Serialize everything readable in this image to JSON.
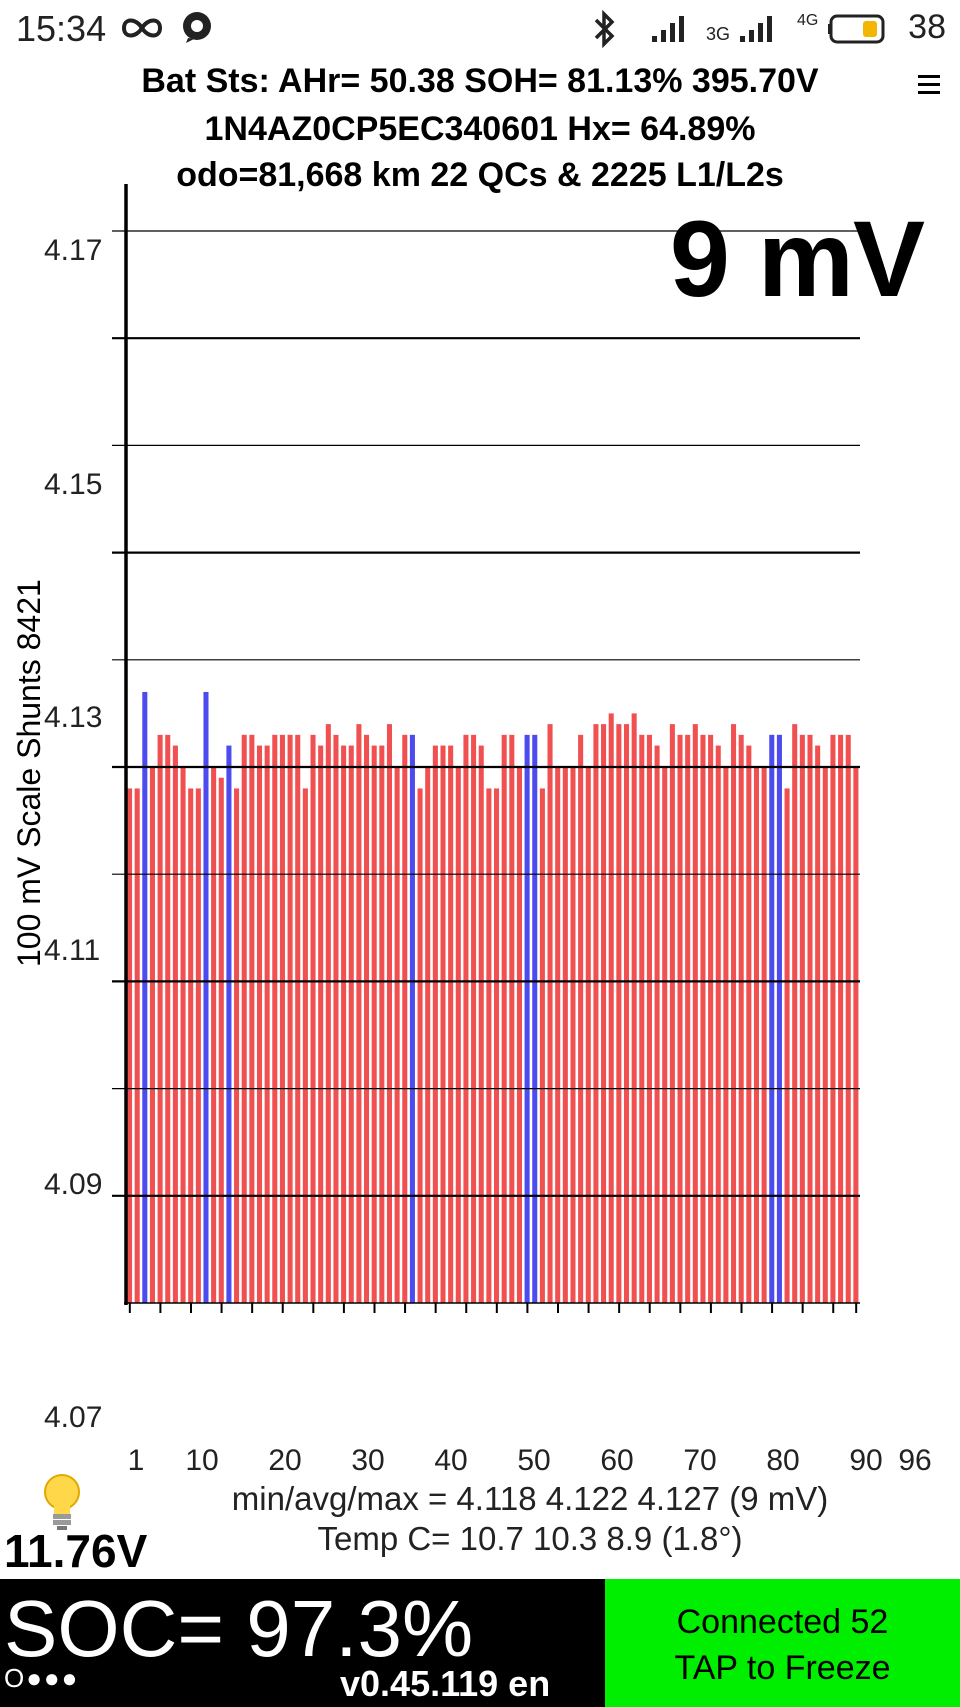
{
  "status_bar": {
    "time": "15:34",
    "battery_level": "38",
    "network_3g": "3G",
    "network_4g": "4G"
  },
  "header": {
    "line1": "Bat Sts: AHr= 50.38 SOH= 81.13% 395.70V",
    "line2": "1N4AZ0CP5EC340601   Hx= 64.89%",
    "line3": "odo=81,668 km 22 QCs & 2225 L1/L2s"
  },
  "chart_data": {
    "type": "bar",
    "big_label": "9 mV",
    "ylabel": "100 mV Scale   Shunts 8421",
    "ylim": [
      4.07,
      4.17
    ],
    "y_tick_labels": [
      "4.17",
      "4.15",
      "4.13",
      "4.11",
      "4.09",
      "4.07"
    ],
    "y_ticks": [
      4.17,
      4.15,
      4.13,
      4.11,
      4.09,
      4.07
    ],
    "gridlines": [
      4.17,
      4.16,
      4.15,
      4.14,
      4.13,
      4.12,
      4.11,
      4.1,
      4.09,
      4.08
    ],
    "x_tick_labels": [
      "1",
      "10",
      "20",
      "30",
      "40",
      "50",
      "60",
      "70",
      "80",
      "90",
      "96"
    ],
    "x_tick_values": [
      1,
      10,
      20,
      30,
      40,
      50,
      60,
      70,
      80,
      90,
      96
    ],
    "x_count": 96,
    "colors": {
      "normal": "#f05050",
      "shunt": "#4b4bf0"
    },
    "series": [
      {
        "name": "cell voltage",
        "values": [
          4.118,
          4.118,
          4.127,
          4.12,
          4.123,
          4.123,
          4.122,
          4.12,
          4.118,
          4.118,
          4.127,
          4.12,
          4.119,
          4.122,
          4.118,
          4.123,
          4.123,
          4.122,
          4.122,
          4.123,
          4.123,
          4.123,
          4.123,
          4.118,
          4.123,
          4.122,
          4.124,
          4.123,
          4.122,
          4.122,
          4.124,
          4.123,
          4.122,
          4.122,
          4.124,
          4.12,
          4.123,
          4.123,
          4.118,
          4.12,
          4.122,
          4.122,
          4.122,
          4.12,
          4.123,
          4.123,
          4.122,
          4.118,
          4.118,
          4.123,
          4.123,
          4.12,
          4.123,
          4.123,
          4.118,
          4.124,
          4.12,
          4.12,
          4.12,
          4.123,
          4.12,
          4.124,
          4.124,
          4.125,
          4.124,
          4.124,
          4.125,
          4.123,
          4.123,
          4.122,
          4.12,
          4.124,
          4.123,
          4.123,
          4.124,
          4.123,
          4.123,
          4.122,
          4.12,
          4.124,
          4.123,
          4.122,
          4.12,
          4.12,
          4.123,
          4.123,
          4.118,
          4.124,
          4.123,
          4.123,
          4.122,
          4.12,
          4.123,
          4.123,
          4.123,
          4.12
        ],
        "shunted": [
          3,
          11,
          14,
          38,
          53,
          54,
          85,
          86
        ]
      }
    ]
  },
  "stats": {
    "minavgmax": "min/avg/max = 4.118 4.122 4.127  (9 mV)",
    "temp": "Temp C= 10.7  10.3  8.9  (1.8°)"
  },
  "aux_voltage": "11.76V",
  "bottom": {
    "soc": "SOC= 97.3%",
    "version": "v0.45.119 en",
    "connected": "Connected 52",
    "freeze": "TAP to Freeze",
    "dots": "O●●●"
  },
  "icons": {
    "bluetooth": "bluetooth-icon",
    "signal": "signal-icon",
    "battery": "battery-icon",
    "loop": "infinity-icon",
    "app": "chat-bubble-icon",
    "menu": "menu-icon",
    "bulb": "lightbulb-icon"
  }
}
